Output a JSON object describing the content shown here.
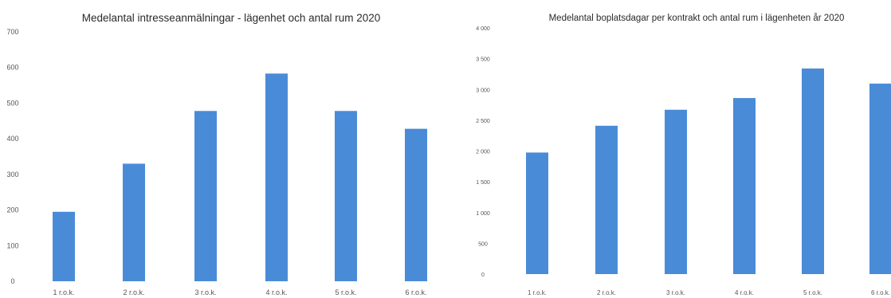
{
  "chart_data": [
    {
      "type": "bar",
      "title": "Medelantal intresseanmälningar - lägenhet och antal rum 2020",
      "xlabel": "",
      "ylabel": "",
      "categories": [
        "1 r.o.k.",
        "2 r.o.k.",
        "3 r.o.k.",
        "4 r.o.k.",
        "5 r.o.k.",
        "6 r.o.k."
      ],
      "values": [
        195,
        330,
        478,
        583,
        478,
        428
      ],
      "ylim": [
        0,
        700
      ],
      "yticks": [
        "0",
        "100",
        "200",
        "300",
        "400",
        "500",
        "600",
        "700"
      ],
      "grid": false,
      "colors": {
        "bar": "#4a8bd8"
      }
    },
    {
      "type": "bar",
      "title": "Medelantal boplatsdagar per kontrakt och antal rum i lägenheten år 2020",
      "xlabel": "",
      "ylabel": "",
      "categories": [
        "1 r.o.k.",
        "2 r.o.k.",
        "3 r.o.k.",
        "4 r.o.k.",
        "5 r.o.k.",
        "6 r.o.k."
      ],
      "values": [
        1975,
        2410,
        2670,
        2860,
        3340,
        3095
      ],
      "ylim": [
        0,
        4000
      ],
      "yticks": [
        "0",
        "500",
        "1 000",
        "1 500",
        "2 000",
        "2 500",
        "3 000",
        "3 500",
        "4 000"
      ],
      "grid": false,
      "colors": {
        "bar": "#4a8bd8"
      }
    }
  ]
}
